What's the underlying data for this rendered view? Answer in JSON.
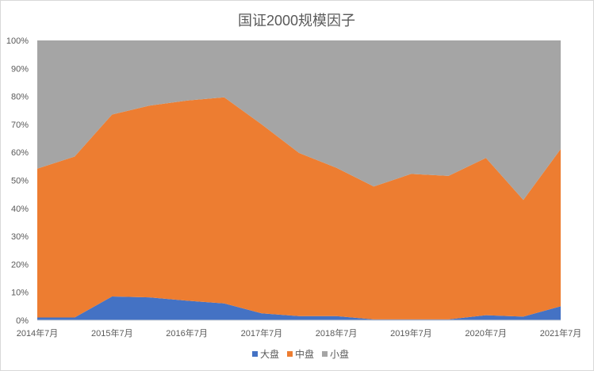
{
  "chart_data": {
    "type": "area",
    "stacked_percent": true,
    "title": "国证2000规模因子",
    "x": [
      "2014年7月",
      "2015年1月",
      "2015年7月",
      "2016年1月",
      "2016年7月",
      "2017年1月",
      "2017年7月",
      "2018年1月",
      "2018年7月",
      "2019年1月",
      "2019年7月",
      "2020年1月",
      "2020年7月",
      "2021年1月",
      "2021年7月"
    ],
    "x_tick_labels": [
      "2014年7月",
      "2015年7月",
      "2016年7月",
      "2017年7月",
      "2018年7月",
      "2019年7月",
      "2020年7月",
      "2021年7月"
    ],
    "y_tick_labels": [
      "0%",
      "10%",
      "20%",
      "30%",
      "40%",
      "50%",
      "60%",
      "70%",
      "80%",
      "90%",
      "100%"
    ],
    "ylim": [
      0,
      100
    ],
    "series": [
      {
        "name": "大盘",
        "color": "#4472c4",
        "values": [
          1,
          1,
          8.5,
          8.2,
          7,
          6,
          2.5,
          1.5,
          1.5,
          0.3,
          0.3,
          0.3,
          1.8,
          1.3,
          5
        ]
      },
      {
        "name": "中盘",
        "color": "#ed7d31",
        "values": [
          53.2,
          57.5,
          65,
          68.5,
          71.5,
          73.7,
          67.5,
          58.3,
          53,
          47.5,
          52,
          51.3,
          56.2,
          41.7,
          56.2
        ]
      },
      {
        "name": "小盘",
        "color": "#a5a5a5",
        "values": [
          45.8,
          41.5,
          26.5,
          23.3,
          21.5,
          20.3,
          30,
          40.2,
          45.5,
          52.2,
          47.7,
          48.4,
          42,
          57,
          38.8
        ]
      }
    ],
    "legend": "bottom",
    "grid": false
  }
}
